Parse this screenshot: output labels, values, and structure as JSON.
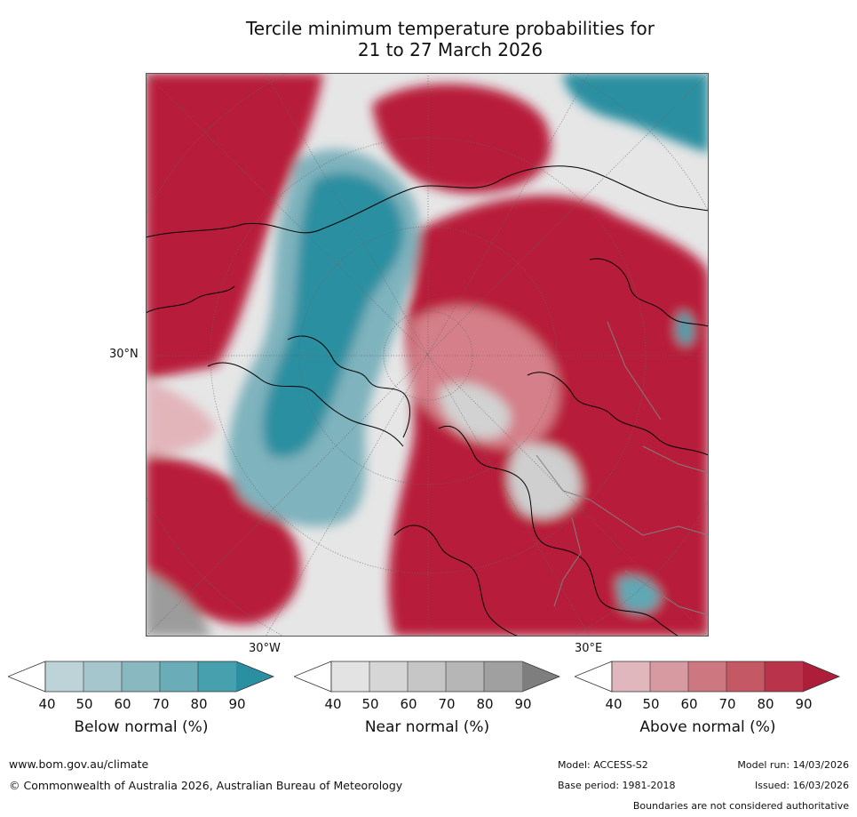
{
  "title_line1": "Tercile minimum temperature probabilities for",
  "title_line2": "21 to 27 March 2026",
  "map": {
    "lat_label": "30°N",
    "lon_labels": [
      "30°W",
      "30°E"
    ]
  },
  "legends": [
    {
      "title": "Below normal (%)",
      "ticks": [
        "40",
        "50",
        "60",
        "70",
        "80",
        "90"
      ],
      "colors": [
        "#bdd3d8",
        "#a4c6cc",
        "#8ab8c1",
        "#6aadb8",
        "#46a0ae",
        "#2a8fa0"
      ]
    },
    {
      "title": "Near normal (%)",
      "ticks": [
        "40",
        "50",
        "60",
        "70",
        "80",
        "90"
      ],
      "colors": [
        "#e3e3e3",
        "#d6d6d6",
        "#c6c6c6",
        "#b6b6b6",
        "#a0a0a0",
        "#7e7e7e"
      ]
    },
    {
      "title": "Above normal (%)",
      "ticks": [
        "40",
        "50",
        "60",
        "70",
        "80",
        "90"
      ],
      "colors": [
        "#e0b7bc",
        "#d79aa1",
        "#cd7880",
        "#c45865",
        "#b9344a",
        "#ad1e3a"
      ]
    }
  ],
  "footer": {
    "url": "www.bom.gov.au/climate",
    "copyright": "© Commonwealth of Australia 2026, Australian Bureau of Meteorology",
    "model": "Model: ACCESS-S2",
    "model_run": "Model run: 14/03/2026",
    "base_period": "Base period: 1981-2018",
    "issued": "Issued: 16/03/2026",
    "disclaimer": "Boundaries are not considered authoritative"
  }
}
